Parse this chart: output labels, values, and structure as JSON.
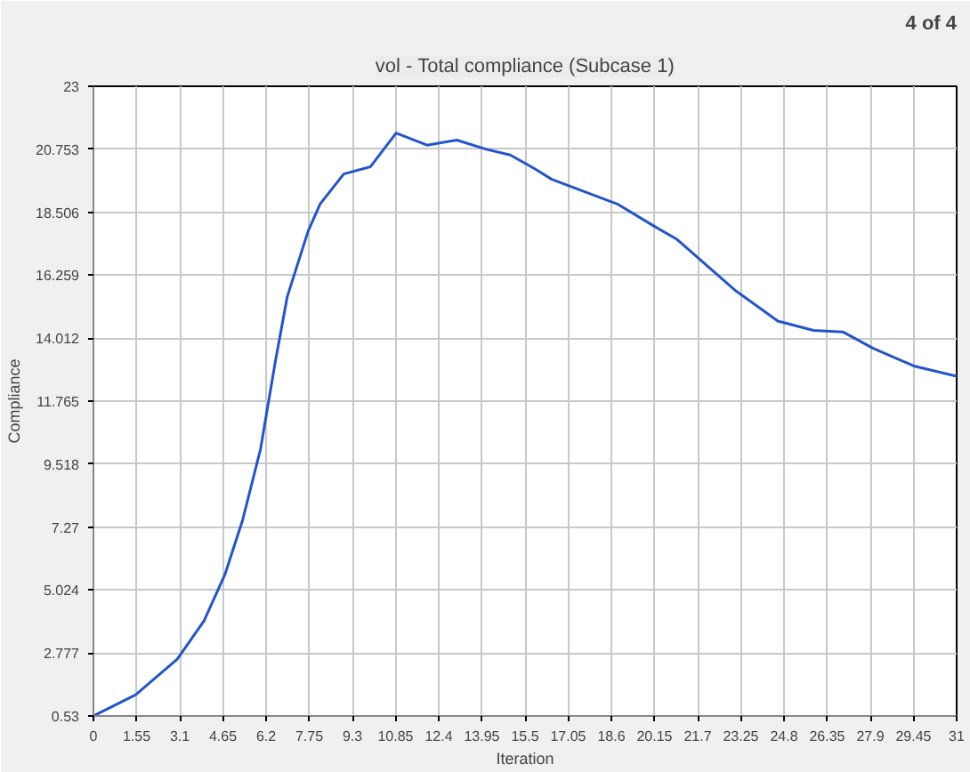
{
  "chart_data": {
    "type": "line",
    "title": "vol - Total compliance (Subcase 1)",
    "annotations": [
      "4 of 4"
    ],
    "xlabel": "Iteration",
    "ylabel": "Compliance",
    "x": [
      0,
      1.52,
      3.01,
      3.97,
      4.72,
      5.36,
      6.0,
      6.53,
      6.96,
      7.71,
      8.14,
      8.99,
      9.95,
      10.87,
      11.98,
      13.05,
      14.11,
      14.97,
      15.82,
      16.46,
      18.81,
      20.1,
      20.95,
      23.08,
      24.58,
      25.86,
      26.93,
      28.0,
      29.49,
      31
    ],
    "series": [
      {
        "color": "#2255cc",
        "values": [
          0.53,
          1.29,
          2.56,
          3.92,
          5.57,
          7.53,
          10.05,
          13.16,
          15.49,
          17.83,
          18.8,
          19.87,
          20.13,
          21.33,
          20.9,
          21.08,
          20.75,
          20.55,
          20.07,
          19.68,
          18.8,
          18.03,
          17.54,
          15.69,
          14.62,
          14.29,
          14.23,
          13.65,
          13.01,
          12.65
        ]
      }
    ],
    "xlim": [
      0,
      31
    ],
    "ylim": [
      0.53,
      23
    ],
    "xticks": [
      0,
      1.55,
      3.1,
      4.65,
      6.2,
      7.75,
      9.3,
      10.85,
      12.4,
      13.95,
      15.5,
      17.05,
      18.6,
      20.15,
      21.7,
      23.25,
      24.8,
      26.35,
      27.9,
      29.45,
      31
    ],
    "yticks": [
      0.53,
      2.777,
      5.024,
      7.27,
      9.518,
      11.765,
      14.012,
      16.259,
      18.506,
      20.753,
      23
    ],
    "grid": true,
    "marker": "none",
    "line_style": "solid"
  }
}
